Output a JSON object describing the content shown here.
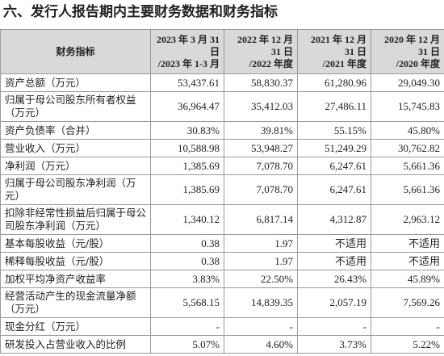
{
  "header": {
    "title": "六、发行人报告期内主要财务数据和财务指标"
  },
  "table": {
    "columns": [
      [
        "财务指标"
      ],
      [
        "2023 年 3 月 31",
        "日",
        "/2023 年 1-3 月"
      ],
      [
        "2022 年 12 月",
        "31 日",
        "/2022 年度"
      ],
      [
        "2021 年 12 月",
        "31 日",
        "/2021 年度"
      ],
      [
        "2020 年 12 月",
        "31 日",
        "/2020 年度"
      ]
    ],
    "rows": [
      [
        "资产总额（万元）",
        "53,437.61",
        "58,830.37",
        "61,280.96",
        "29,049.30"
      ],
      [
        "归属于母公司股东所有者权益（万元）",
        "36,964.47",
        "35,412.03",
        "27,486.11",
        "15,745.83"
      ],
      [
        "资产负债率（合并）",
        "30.83%",
        "39.81%",
        "55.15%",
        "45.80%"
      ],
      [
        "营业收入（万元）",
        "10,588.98",
        "53,948.27",
        "51,249.29",
        "30,762.82"
      ],
      [
        "净利润（万元）",
        "1,385.69",
        "7,078.70",
        "6,247.61",
        "5,661.36"
      ],
      [
        "归属于母公司股东净利润（万元）",
        "1,385.69",
        "7,078.70",
        "6,247.61",
        "5,661.36"
      ],
      [
        "扣除非经常性损益后归属于母公司股东净利润（万元）",
        "1,340.12",
        "6,817.14",
        "4,312.87",
        "2,963.12"
      ],
      [
        "基本每股收益（元/股）",
        "0.38",
        "1.97",
        "不适用",
        "不适用"
      ],
      [
        "稀释每股收益（元/股）",
        "0.38",
        "1.97",
        "不适用",
        "不适用"
      ],
      [
        "加权平均净资产收益率",
        "3.83%",
        "22.50%",
        "26.43%",
        "45.89%"
      ],
      [
        "经营活动产生的现金流量净额（万元）",
        "5,568.15",
        "14,839.35",
        "2,057.19",
        "7,569.26"
      ],
      [
        "现金分红（万元）",
        "-",
        "-",
        "-",
        "-"
      ],
      [
        "研发投入占营业收入的比例",
        "5.07%",
        "4.60%",
        "3.73%",
        "5.22%"
      ]
    ]
  }
}
